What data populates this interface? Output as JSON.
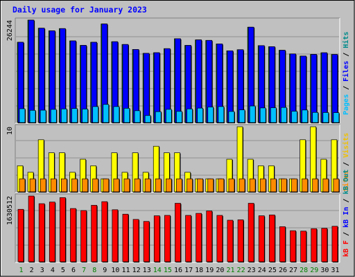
{
  "chart_data": {
    "type": "bar",
    "title": "Daily usage for January 2023",
    "days": [
      "1",
      "2",
      "3",
      "4",
      "5",
      "6",
      "7",
      "8",
      "9",
      "10",
      "11",
      "12",
      "13",
      "14",
      "15",
      "16",
      "17",
      "18",
      "19",
      "20",
      "21",
      "22",
      "23",
      "24",
      "25",
      "26",
      "27",
      "28",
      "29",
      "30",
      "31"
    ],
    "weekend_days": [
      "1",
      "7",
      "8",
      "14",
      "15",
      "21",
      "22",
      "28",
      "29"
    ],
    "panels": [
      {
        "id": "hits",
        "max_label": "26244",
        "ymax": 26244,
        "legend": [
          {
            "text": "Pages",
            "color": "#00bfff"
          },
          {
            "text": " / ",
            "color": "#000000"
          },
          {
            "text": "Files",
            "color": "#0000ff"
          },
          {
            "text": " / ",
            "color": "#000000"
          },
          {
            "text": "Hits",
            "color": "#008b8b"
          }
        ],
        "series": [
          {
            "key": "hits",
            "color": "#00c000",
            "values": [
              20570,
              26244,
              24170,
              23500,
              24070,
              20920,
              19770,
              20570,
              25250,
              20710,
              20000,
              18720,
              17730,
              17890,
              18930,
              21480,
              19770,
              21180,
              21050,
              20150,
              18380,
              18660,
              24430,
              19710,
              19430,
              18520,
              17590,
              17030,
              17460,
              17880,
              17440
            ]
          },
          {
            "key": "files",
            "color": "#0000ff",
            "values": [
              20570,
              26244,
              24170,
              23500,
              24070,
              20920,
              19770,
              20570,
              25250,
              20710,
              20000,
              18720,
              17730,
              17890,
              18930,
              21480,
              19770,
              21180,
              21050,
              20150,
              18380,
              18660,
              24430,
              19710,
              19430,
              18520,
              17590,
              17030,
              17460,
              17880,
              17440
            ]
          },
          {
            "key": "pages",
            "color": "#00bfff",
            "values": [
              3550,
              3140,
              3180,
              3380,
              3500,
              3600,
              3470,
              4100,
              4650,
              4100,
              3660,
              3040,
              1810,
              2800,
              3390,
              2870,
              3500,
              3700,
              3990,
              4100,
              2850,
              3250,
              4250,
              3750,
              3800,
              3870,
              2910,
              3220,
              2610,
              2580,
              2550
            ]
          }
        ]
      },
      {
        "id": "visits",
        "max_label": "10",
        "ymax": 10,
        "legend": [
          {
            "text": "Sites",
            "color": "#ff8c00"
          },
          {
            "text": " / ",
            "color": "#000000"
          },
          {
            "text": "Visits",
            "color": "#f0c000"
          }
        ],
        "series": [
          {
            "key": "visits",
            "color": "#ffff00",
            "values": [
              4,
              3,
              8,
              6,
              6,
              3,
              5,
              4,
              2,
              6,
              3,
              6,
              3,
              7,
              6,
              6,
              3,
              2,
              2,
              2,
              5,
              10,
              5,
              4,
              4,
              2,
              2,
              8,
              10,
              5,
              8
            ]
          },
          {
            "key": "sites",
            "color": "#ff8c00",
            "values": [
              2,
              2,
              2,
              2,
              2,
              2,
              2,
              2,
              2,
              2,
              2,
              2,
              2,
              2,
              2,
              2,
              2,
              2,
              2,
              2,
              2,
              2,
              2,
              2,
              2,
              2,
              2,
              2,
              2,
              2,
              2
            ]
          }
        ]
      },
      {
        "id": "kbytes",
        "max_label": "1630512",
        "ymax": 1630512,
        "legend": [
          {
            "text": "kB F",
            "color": "#ff0000"
          },
          {
            "text": " / ",
            "color": "#000000"
          },
          {
            "text": "kB In",
            "color": "#0000ff"
          },
          {
            "text": " / ",
            "color": "#000000"
          },
          {
            "text": "kB Out",
            "color": "#008b8b"
          }
        ],
        "series": [
          {
            "key": "kbF",
            "color": "#ff0000",
            "values": [
              1300000,
              1630512,
              1440000,
              1480000,
              1590000,
              1320000,
              1270000,
              1400000,
              1490000,
              1290000,
              1180000,
              1050000,
              1000000,
              1140000,
              1150000,
              1450000,
              1150000,
              1200000,
              1260000,
              1150000,
              1030000,
              1040000,
              1450000,
              1140000,
              1160000,
              870000,
              770000,
              760000,
              820000,
              830000,
              880000
            ]
          }
        ]
      }
    ]
  }
}
